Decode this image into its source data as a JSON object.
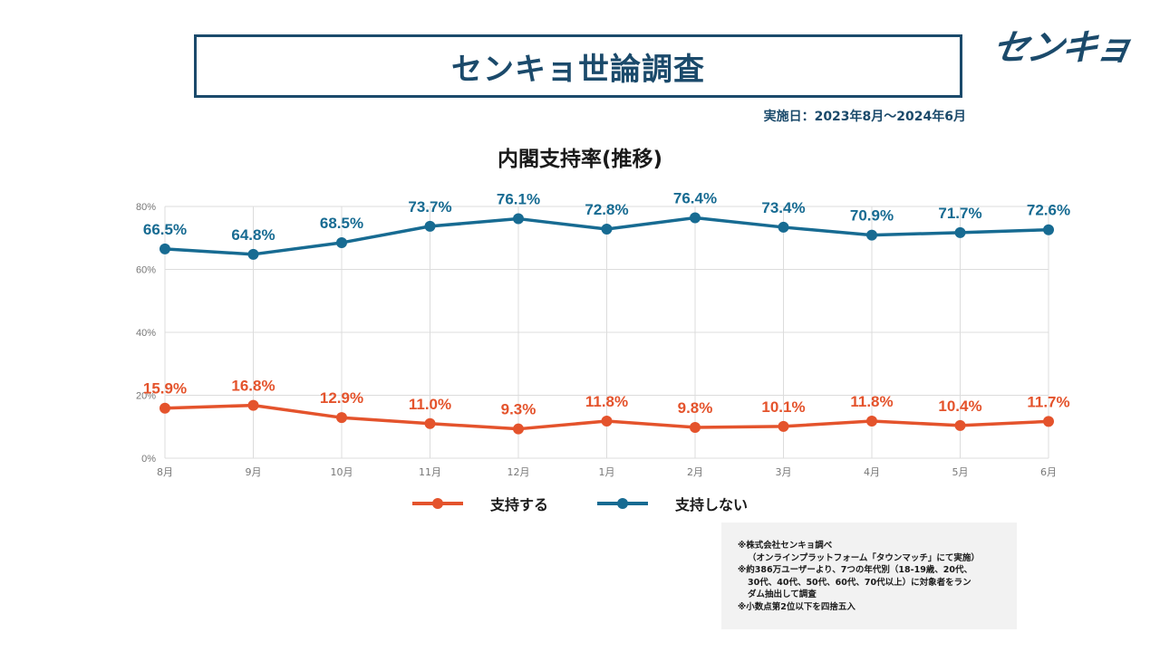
{
  "header": {
    "title": "センキョ世論調査",
    "logo_text": "センキョ",
    "date": "実施日：2023年8月〜2024年6月"
  },
  "chart_title": "内閣支持率(推移)",
  "legend": [
    {
      "label": "支持する",
      "color": "#e4532c"
    },
    {
      "label": "支持しない",
      "color": "#176b92"
    }
  ],
  "notes": [
    "※株式会社センキョ調べ",
    "（オンラインプラットフォーム「タウンマッチ」にて実施）",
    "※約386万ユーザーより、7つの年代別（18-19歳、20代、",
    "30代、40代、50代、60代、70代以上）に対象者をラン",
    "ダム抽出して調査",
    "※小数点第2位以下を四捨五入"
  ],
  "chart_data": {
    "type": "line",
    "title": "内閣支持率(推移)",
    "categories": [
      "8月",
      "9月",
      "10月",
      "11月",
      "12月",
      "1月",
      "2月",
      "3月",
      "4月",
      "5月",
      "6月"
    ],
    "ylim": [
      0,
      80
    ],
    "yticks": [
      "0%",
      "20%",
      "40%",
      "60%",
      "80%"
    ],
    "grid": true,
    "legend_position": "bottom",
    "series": [
      {
        "name": "支持しない",
        "color": "#176b92",
        "values": [
          66.5,
          64.8,
          68.5,
          73.7,
          76.1,
          72.8,
          76.4,
          73.4,
          70.9,
          71.7,
          72.6
        ],
        "labels": [
          "66.5%",
          "64.8%",
          "68.5%",
          "73.7%",
          "76.1%",
          "72.8%",
          "76.4%",
          "73.4%",
          "70.9%",
          "71.7%",
          "72.6%"
        ]
      },
      {
        "name": "支持する",
        "color": "#e4532c",
        "values": [
          15.9,
          16.8,
          12.9,
          11.0,
          9.3,
          11.8,
          9.8,
          10.1,
          11.8,
          10.4,
          11.7
        ],
        "labels": [
          "15.9%",
          "16.8%",
          "12.9%",
          "11.0%",
          "9.3%",
          "11.8%",
          "9.8%",
          "10.1%",
          "11.8%",
          "10.4%",
          "11.7%"
        ]
      }
    ]
  }
}
